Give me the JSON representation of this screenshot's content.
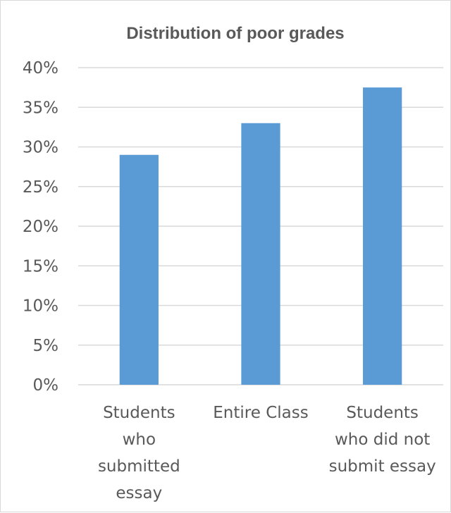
{
  "chart_data": {
    "type": "bar",
    "title": "Distribution of poor grades",
    "categories": [
      [
        "Students",
        "who",
        "submitted",
        "essay"
      ],
      [
        "Entire Class"
      ],
      [
        "Students",
        "who did not",
        "submit essay"
      ]
    ],
    "values": [
      0.29,
      0.33,
      0.375
    ],
    "ylim": [
      0,
      0.4
    ],
    "yticks": [
      0,
      0.05,
      0.1,
      0.15,
      0.2,
      0.25,
      0.3,
      0.35,
      0.4
    ],
    "ytick_labels": [
      "0%",
      "5%",
      "10%",
      "15%",
      "20%",
      "25%",
      "30%",
      "35%",
      "40%"
    ],
    "xlabel": "",
    "ylabel": "",
    "grid": true,
    "legend": "none",
    "colors": {
      "bar": "#5b9bd5",
      "gridline": "#d9d9d9",
      "text": "#595959"
    }
  }
}
